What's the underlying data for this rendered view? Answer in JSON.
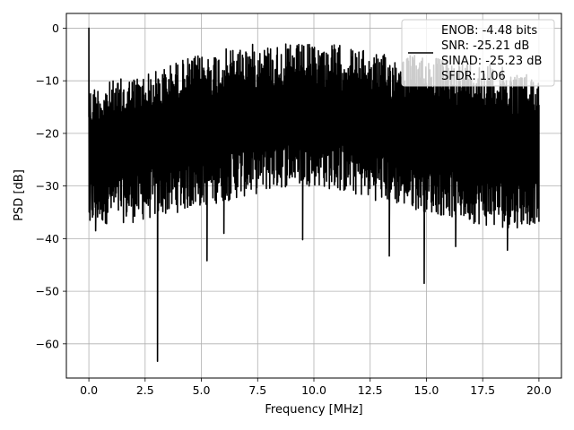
{
  "chart_data": {
    "type": "line",
    "xlabel": "Frequency [MHz]",
    "ylabel": "PSD [dB]",
    "xlim": [
      -1.0,
      21.0
    ],
    "ylim": [
      -66.5,
      2.8
    ],
    "grid": true,
    "legend_placement": "top-right",
    "x_ticks": [
      0.0,
      2.5,
      5.0,
      7.5,
      10.0,
      12.5,
      15.0,
      17.5,
      20.0
    ],
    "x_tick_labels": [
      "0.0",
      "2.5",
      "5.0",
      "7.5",
      "10.0",
      "12.5",
      "15.0",
      "17.5",
      "20.0"
    ],
    "y_ticks": [
      0,
      -10,
      -20,
      -30,
      -40,
      -50,
      -60
    ],
    "y_tick_labels": [
      "0",
      "−10",
      "−20",
      "−30",
      "−40",
      "−50",
      "−60"
    ],
    "series_color": "#000000",
    "series": [
      {
        "x_start": 0.0,
        "x_end": 20.0,
        "envelope": {
          "x": [
            0,
            1,
            2,
            3,
            4,
            5,
            6,
            7,
            8,
            9,
            10,
            11,
            12,
            13,
            14,
            15,
            16,
            17,
            18,
            19,
            20
          ],
          "upper": [
            -11,
            -10,
            -9,
            -8,
            -6,
            -5,
            -4,
            -3,
            -3,
            -3,
            -3,
            -3,
            -4,
            -5,
            -5,
            -5,
            -6,
            -6,
            -7,
            -8,
            -9
          ],
          "lower": [
            -38,
            -37,
            -37,
            -36,
            -35,
            -34,
            -33,
            -32,
            -31,
            -30,
            -30,
            -31,
            -32,
            -33,
            -34,
            -35,
            -36,
            -37,
            -38,
            -38,
            -37
          ]
        },
        "notable_points": [
          {
            "x": 0.0,
            "y": 0.0
          },
          {
            "x": 0.05,
            "y": -36.5
          },
          {
            "x": 0.3,
            "y": -38.5
          },
          {
            "x": 3.05,
            "y": -63.3
          },
          {
            "x": 5.25,
            "y": -44.2
          },
          {
            "x": 6.0,
            "y": -39.0
          },
          {
            "x": 9.5,
            "y": -40.2
          },
          {
            "x": 13.35,
            "y": -43.3
          },
          {
            "x": 14.9,
            "y": -48.5
          },
          {
            "x": 16.3,
            "y": -41.5
          },
          {
            "x": 18.6,
            "y": -42.2
          },
          {
            "x": 20.0,
            "y": -36.8
          }
        ]
      }
    ],
    "legend_entries": [
      "ENOB: -4.48 bits",
      "SNR: -25.21 dB",
      "SINAD: -25.23 dB",
      "SFDR: 1.06"
    ]
  }
}
